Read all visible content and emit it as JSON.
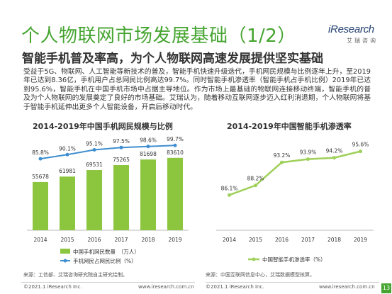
{
  "slide": {
    "title": "个人物联网市场发展基础（1/2）",
    "subtitle": "智能手机普及率高，为个人物联网高速发展提供坚实基础",
    "body": "受益于5G、物联网、人工智能等新技术的普及，智能手机快速升级迭代，手机网民规模与比例逐年上升，至2019年已达到8.36亿，手机用户占总网民比例高达99.7%。同时智能手机渗透率（智能手机占手机比例）2019年已达到95.6%，智能手机在中国手机市场中占据主导地位。作为市场上最基础的物联网连接移动终端，智能手机的普及为个人物联网的发展奠定了良好的市场基础。艾瑞认为，随着移动互联网逐步迈入红利消退期，个人物联网将基于智能手机延伸出更多个人智能设备，开启后移动时代。",
    "page_number": "13"
  },
  "logo": {
    "text": "iResearch",
    "sub": "艾瑞咨询"
  },
  "colors": {
    "green": "#46a531",
    "bar": "#8cc63f",
    "line": "#9fd05a",
    "blue": "#3e8ed0"
  },
  "chart_data": [
    {
      "type": "bar",
      "title": "2014-2019年中国手机网民规模与比例",
      "categories": [
        "2014",
        "2015",
        "2016",
        "2017",
        "2018",
        "2019"
      ],
      "series": [
        {
          "name": "中国手机网民数量　（万人）",
          "type": "bar",
          "values": [
            55678,
            61981,
            69531,
            75265,
            81698,
            83610
          ],
          "labels": [
            "55678",
            "61981",
            "69531",
            "75265",
            "81698",
            "83610"
          ]
        },
        {
          "name": "手机网民占网民比例（%）",
          "type": "line",
          "values": [
            85.8,
            90.1,
            95.1,
            97.5,
            98.6,
            99.7
          ],
          "labels": [
            "85.8%",
            "90.1%",
            "95.1%",
            "97.5%",
            "98.6%",
            "99.7%"
          ]
        }
      ],
      "legend": "bottom",
      "grid": false,
      "source": "来源：工信部、艾瑞咨询研究院自主研究绘制。"
    },
    {
      "type": "line",
      "title": "2014-2019年中国智能手机渗透率",
      "categories": [
        "2014",
        "2015",
        "2016",
        "2017",
        "2018",
        "2019"
      ],
      "series": [
        {
          "name": "中国智能手机渗透率（%）",
          "values": [
            86.1,
            88.2,
            93.2,
            93.9,
            94.2,
            95.6
          ],
          "labels": [
            "86.1%",
            "88.2%",
            "93.2%",
            "93.9%",
            "94.2%",
            "95.6%"
          ]
        }
      ],
      "legend": "bottom",
      "grid": false,
      "source": "来源：中国互联网信息中心，艾瑞数据模型核算。"
    }
  ],
  "footer": {
    "left_copyright": "©2021.1 iResearch Inc.",
    "left_url": "www.iresearch.com.cn",
    "right_copyright": "©2021.1 iResearch Inc.",
    "right_url": "www.iresearch.com.cn"
  }
}
